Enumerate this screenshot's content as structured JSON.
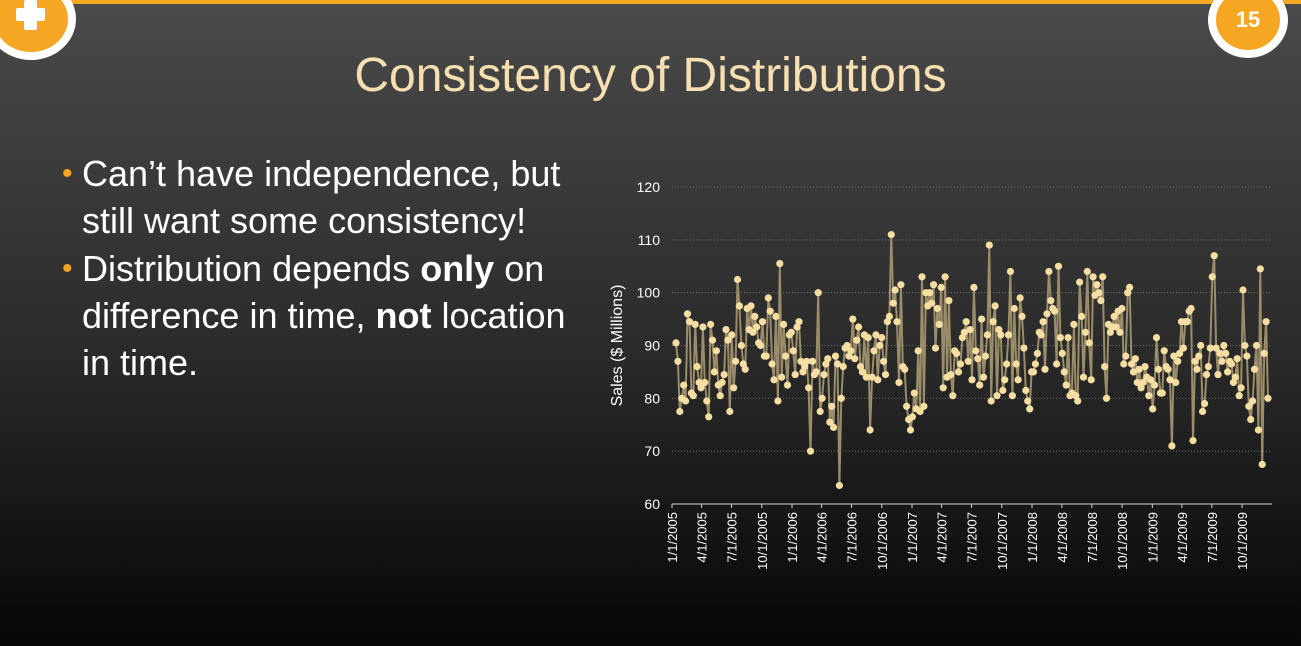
{
  "slide": {
    "title": "Consistency of Distributions",
    "page_number": "15",
    "bullets": [
      [
        {
          "text": "Can’t have independence, but still want some consistency!",
          "bold": false
        }
      ],
      [
        {
          "text": "Distribution depends ",
          "bold": false
        },
        {
          "text": "only",
          "bold": true
        },
        {
          "text": " on difference in time, ",
          "bold": false
        },
        {
          "text": "not",
          "bold": true
        },
        {
          "text": " location in time.",
          "bold": false
        }
      ]
    ]
  },
  "colors": {
    "accent": "#f5a623",
    "title": "#f6e0b2",
    "series_line": "#9b8d6a",
    "series_marker": "#f7dfa3",
    "axis_text": "#ffffff",
    "grid": "#6e6e6e"
  },
  "chart_data": {
    "type": "line",
    "ylabel": "Sales ($ Millions)",
    "xlabel": "",
    "ylim": [
      60,
      120
    ],
    "yticks": [
      60,
      70,
      80,
      90,
      100,
      110,
      120
    ],
    "grid": true,
    "markers": true,
    "x_start": "1/1/2005",
    "x_end": "12/31/2009",
    "x_tick_labels": [
      "1/1/2005",
      "4/1/2005",
      "7/1/2005",
      "10/1/2005",
      "1/1/2006",
      "4/1/2006",
      "7/1/2006",
      "10/1/2006",
      "1/1/2007",
      "4/1/2007",
      "7/1/2007",
      "10/1/2007",
      "1/1/2008",
      "4/1/2008",
      "7/1/2008",
      "10/1/2008",
      "1/1/2009",
      "4/1/2009",
      "7/1/2009",
      "10/1/2009"
    ],
    "series": [
      {
        "values": [
          90.5,
          87,
          77.5,
          80,
          82.5,
          79.5,
          96,
          94.5,
          81,
          80.5,
          94,
          86,
          83,
          82,
          93.5,
          83,
          79.5,
          76.5,
          94,
          91,
          85,
          89,
          82.5,
          80.5,
          83,
          84.5,
          93,
          91,
          77.5,
          92,
          82,
          87,
          102.5,
          97.5,
          90,
          86.5,
          85.5,
          97,
          93,
          97.5,
          92.5,
          95.5,
          93.5,
          90.5,
          90,
          94.5,
          88,
          88,
          99,
          96.5,
          86.5,
          83.5,
          95.5,
          79.5,
          105.5,
          84,
          94,
          88,
          82.5,
          92,
          92.5,
          89,
          84.5,
          93.5,
          94.5,
          87,
          85,
          86,
          87,
          82,
          70,
          87,
          84.5,
          85,
          100,
          77.5,
          80,
          84.5,
          86.5,
          87.5,
          75.5,
          78.5,
          74.5,
          88,
          86.5,
          63.5,
          80,
          86,
          89.5,
          90,
          88,
          89,
          95,
          87.5,
          91,
          93.5,
          86,
          85,
          92,
          84,
          91.5,
          74,
          84,
          89,
          92,
          83.5,
          90,
          91.5,
          87,
          84.5,
          94.5,
          95.5,
          111,
          98,
          100.5,
          94.5,
          83,
          101.5,
          86,
          85.5,
          78.5,
          76,
          74,
          76.5,
          81,
          78,
          89,
          77.5,
          103,
          78.5,
          100,
          97.5,
          100,
          98,
          101.5,
          89.5,
          97,
          94,
          101,
          82,
          103,
          84,
          98.5,
          84.5,
          80.5,
          89,
          88.5,
          85,
          86.5,
          91.5,
          92.5,
          94.5,
          87,
          93,
          83.5,
          101,
          89,
          87.5,
          82.5,
          95,
          84,
          88,
          92,
          109,
          79.5,
          94.5,
          97.5,
          80.5,
          93,
          92,
          81.5,
          83.5,
          86.5,
          92,
          104,
          80.5,
          97,
          86.5,
          83.5,
          99,
          95.5,
          89.5,
          81.5,
          79.5,
          78,
          85,
          85,
          86.5,
          88.5,
          92.5,
          92,
          94.5,
          85.5,
          96,
          104,
          98.5,
          97,
          96.5,
          86.5,
          105,
          91.5,
          88.5,
          85,
          82.5,
          91.5,
          80.5,
          81,
          94,
          80.5,
          79.5,
          102,
          95.5,
          84,
          92.5,
          104,
          90.5,
          83.5,
          103,
          99.5,
          101.5,
          100,
          98.5,
          103,
          86,
          80,
          94,
          92.5,
          93.5,
          95.5,
          93.5,
          96.5,
          92.5,
          97,
          86.5,
          88,
          100,
          101,
          86.5,
          85,
          87.5,
          83,
          85.5,
          82,
          83,
          86,
          84,
          80.5,
          83.5,
          78,
          82.5,
          91.5,
          85.5,
          81,
          81,
          89,
          86,
          85.5,
          83.5,
          71,
          88,
          83,
          87,
          88.5,
          94.5,
          89.5,
          94.5,
          94.5,
          96.5,
          97,
          72,
          87,
          85.5,
          88,
          90,
          77.5,
          79,
          84.5,
          86,
          89.5,
          103,
          107,
          89.5,
          84.5,
          88.5,
          87,
          90,
          88.5,
          85,
          87,
          86.5,
          83,
          84,
          87.5,
          80.5,
          82,
          100.5,
          90,
          88,
          78.5,
          76,
          79.5,
          85.5,
          90,
          74,
          104.5,
          67.5,
          88.5,
          94.5,
          80
        ]
      }
    ]
  }
}
